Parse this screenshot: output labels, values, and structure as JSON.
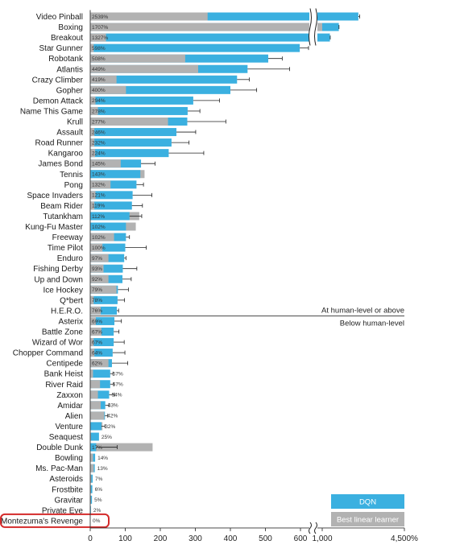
{
  "chart_data": {
    "type": "bar",
    "orientation": "horizontal",
    "x_unit_label": "%",
    "categories": [
      "Video Pinball",
      "Boxing",
      "Breakout",
      "Star Gunner",
      "Robotank",
      "Atlantis",
      "Crazy Climber",
      "Gopher",
      "Demon Attack",
      "Name This Game",
      "Krull",
      "Assault",
      "Road Runner",
      "Kangaroo",
      "James Bond",
      "Tennis",
      "Pong",
      "Space Invaders",
      "Beam Rider",
      "Tutankham",
      "Kung-Fu Master",
      "Freeway",
      "Time Pilot",
      "Enduro",
      "Fishing Derby",
      "Up and Down",
      "Ice Hockey",
      "Q*bert",
      "H.E.R.O.",
      "Asterix",
      "Battle Zone",
      "Wizard of Wor",
      "Chopper Command",
      "Centipede",
      "Bank Heist",
      "River Raid",
      "Zaxxon",
      "Amidar",
      "Alien",
      "Venture",
      "Seaquest",
      "Double Dunk",
      "Bowling",
      "Ms. Pac-Man",
      "Asteroids",
      "Frostbite",
      "Gravitar",
      "Private Eye",
      "Montezuma's Revenge"
    ],
    "value_labels": [
      "2539%",
      "1707%",
      "1327%",
      "598%",
      "508%",
      "449%",
      "419%",
      "400%",
      "294%",
      "278%",
      "277%",
      "246%",
      "232%",
      "224%",
      "145%",
      "143%",
      "132%",
      "121%",
      "119%",
      "112%",
      "102%",
      "102%",
      "100%",
      "97%",
      "93%",
      "92%",
      "79%",
      "78%",
      "76%",
      "69%",
      "67%",
      "67%",
      "64%",
      "62%",
      "57%",
      "57%",
      "54%",
      "43%",
      "42%",
      "32%",
      "25%",
      "17%",
      "14%",
      "13%",
      "7%",
      "6%",
      "5%",
      "2%",
      "0%"
    ],
    "series": [
      {
        "name": "DQN",
        "color": "#3bb0e0",
        "values": [
          2539,
          1707,
          1327,
          598,
          508,
          449,
          419,
          400,
          294,
          278,
          277,
          246,
          232,
          224,
          145,
          143,
          132,
          121,
          119,
          112,
          102,
          102,
          100,
          97,
          93,
          92,
          79,
          78,
          76,
          69,
          67,
          67,
          64,
          62,
          57,
          57,
          54,
          43,
          42,
          32,
          25,
          17,
          14,
          13,
          7,
          6,
          5,
          2,
          0
        ]
      },
      {
        "name": "Best linear learner",
        "color": "#b2b2b2",
        "values": [
          335,
          1000,
          45,
          10,
          271,
          308,
          75,
          102,
          15,
          22,
          222,
          12,
          12,
          14,
          87,
          155,
          58,
          15,
          12,
          140,
          130,
          68,
          35,
          52,
          38,
          52,
          75,
          10,
          30,
          16,
          32,
          10,
          12,
          52,
          8,
          28,
          22,
          30,
          40,
          35,
          2,
          178,
          8,
          10,
          3,
          2,
          2,
          1,
          0
        ]
      }
    ],
    "errors": [
      55,
      8,
      15,
      25,
      40,
      120,
      35,
      75,
      75,
      35,
      110,
      55,
      50,
      100,
      40,
      0,
      20,
      55,
      30,
      35,
      0,
      10,
      60,
      5,
      40,
      25,
      30,
      20,
      5,
      20,
      15,
      30,
      35,
      45,
      8,
      10,
      15,
      10,
      8,
      10,
      0,
      60,
      0,
      0,
      0,
      0,
      0,
      0,
      0
    ],
    "x_ticks": [
      "0",
      "100",
      "200",
      "300",
      "400",
      "500",
      "600",
      "1,000",
      "4,500%"
    ],
    "x_tick_values": [
      0,
      100,
      200,
      300,
      400,
      500,
      600,
      1000,
      4500
    ],
    "axis_break": [
      650,
      1000
    ],
    "threshold_value": 100,
    "threshold_after": "H.E.R.O.",
    "region_labels": {
      "above": "At human-level or above",
      "below": "Below human-level"
    },
    "highlighted_category": "Montezuma's Revenge",
    "legend": {
      "placement": "bottom-right"
    }
  }
}
